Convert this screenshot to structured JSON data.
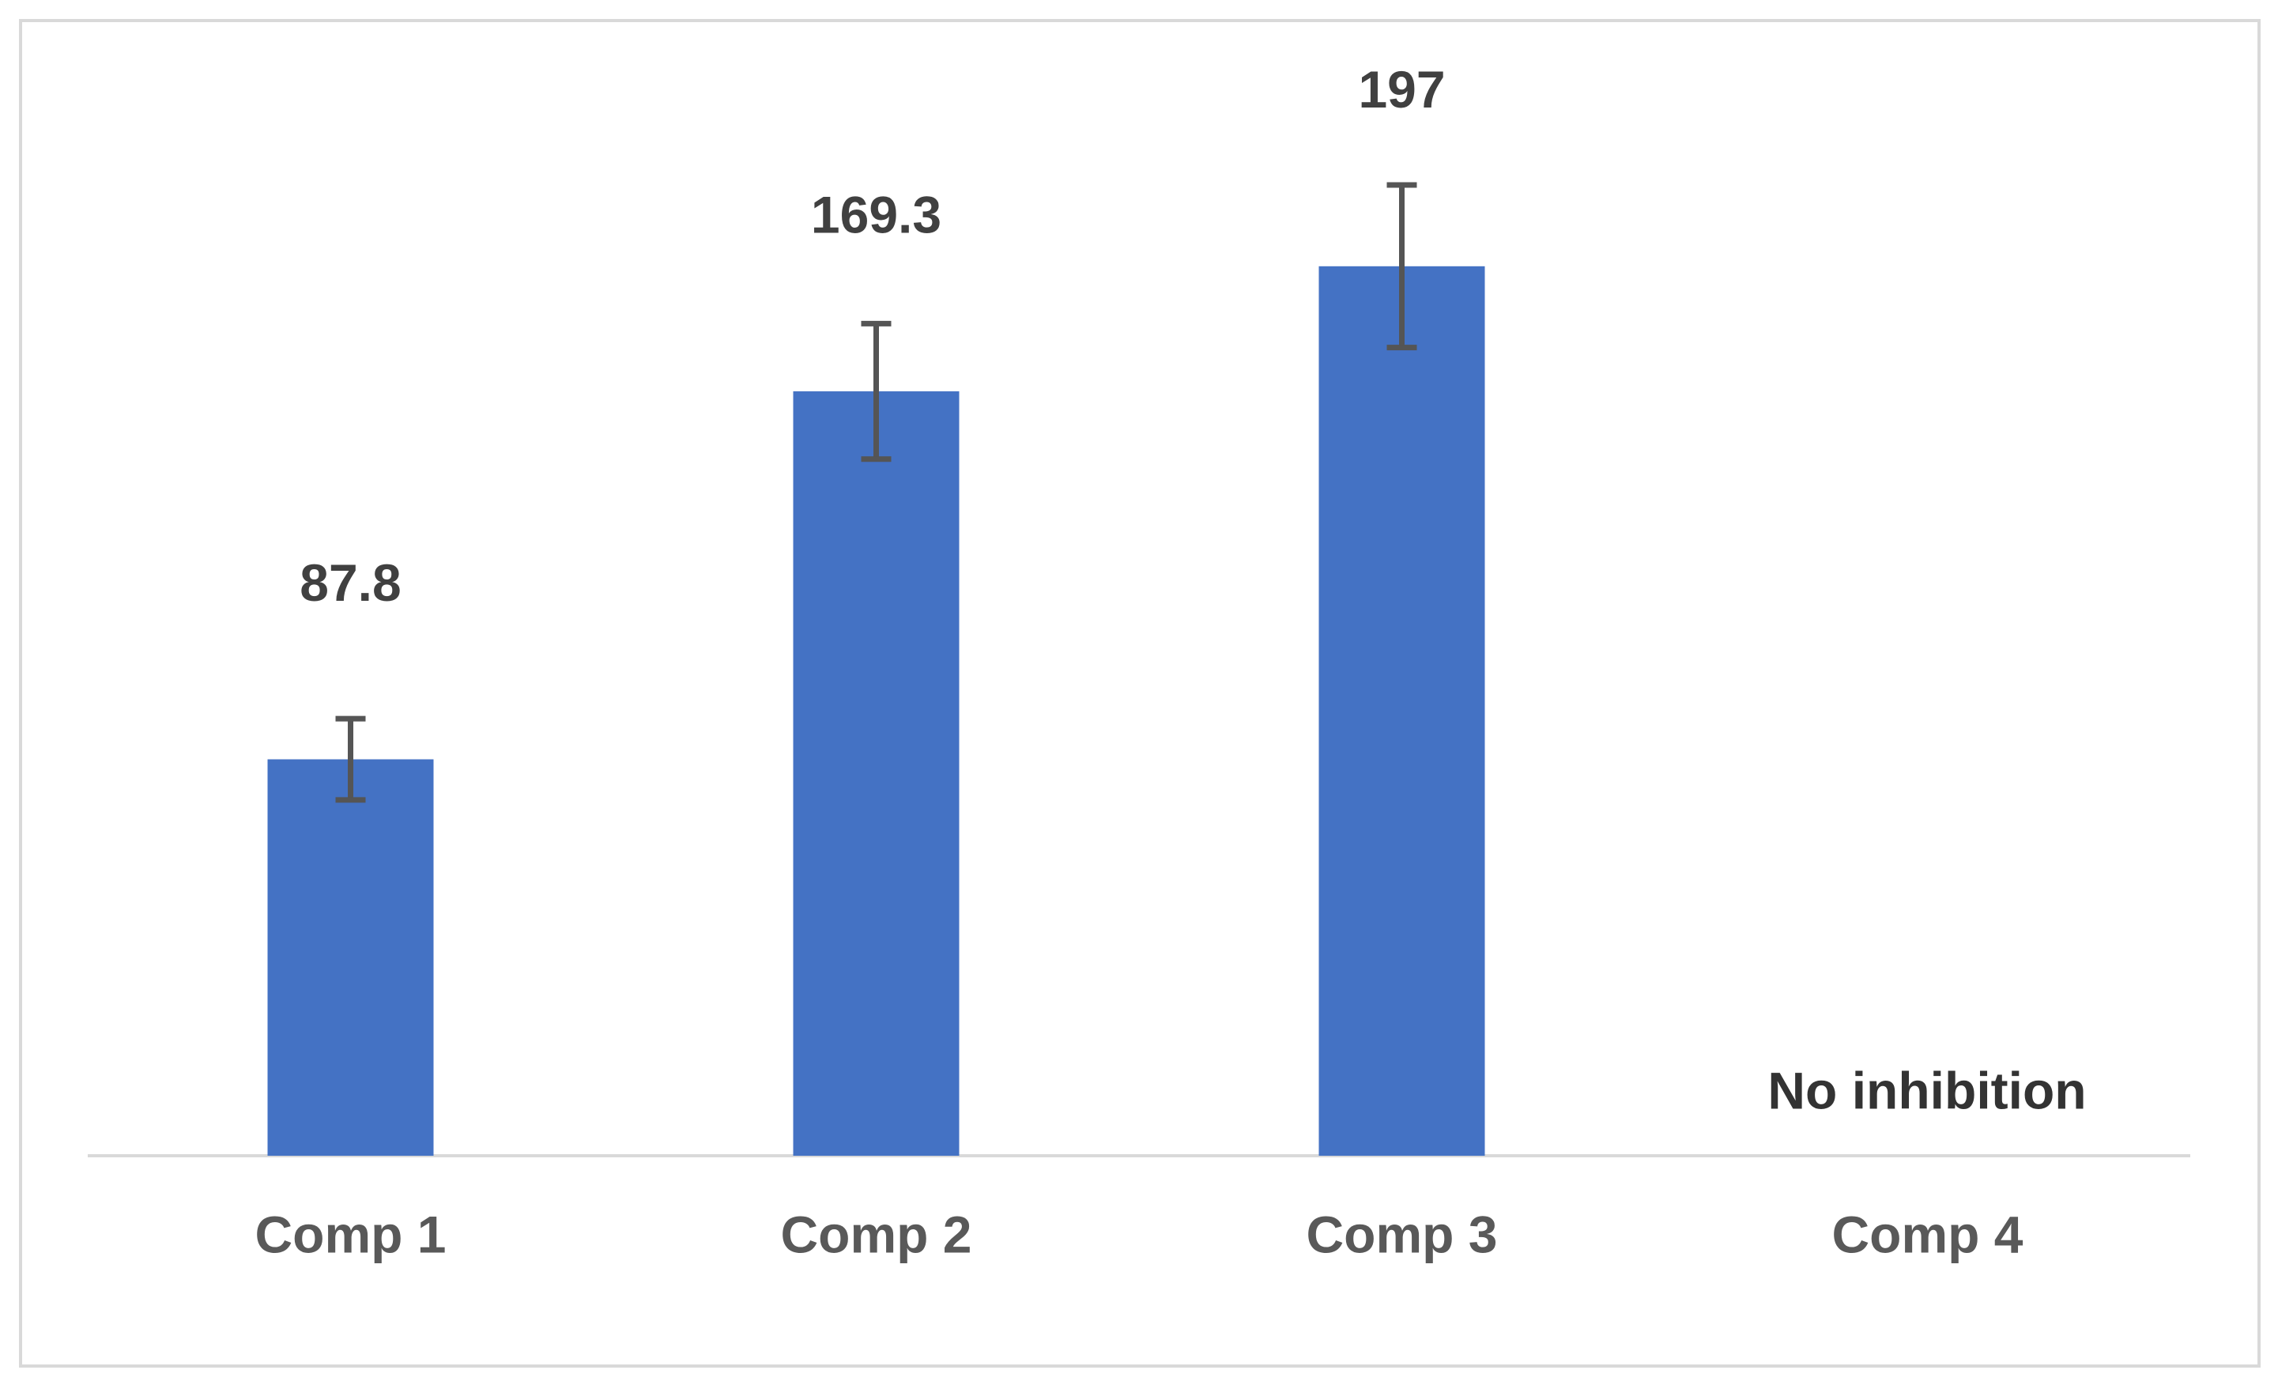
{
  "chart_data": {
    "type": "bar",
    "categories": [
      "Comp 1",
      "Comp 2",
      "Comp 3",
      "Comp 4"
    ],
    "values": [
      87.8,
      169.3,
      197,
      null
    ],
    "errors": [
      9,
      15,
      18,
      null
    ],
    "color": "#4472c4",
    "annotation": "No inhibition"
  }
}
